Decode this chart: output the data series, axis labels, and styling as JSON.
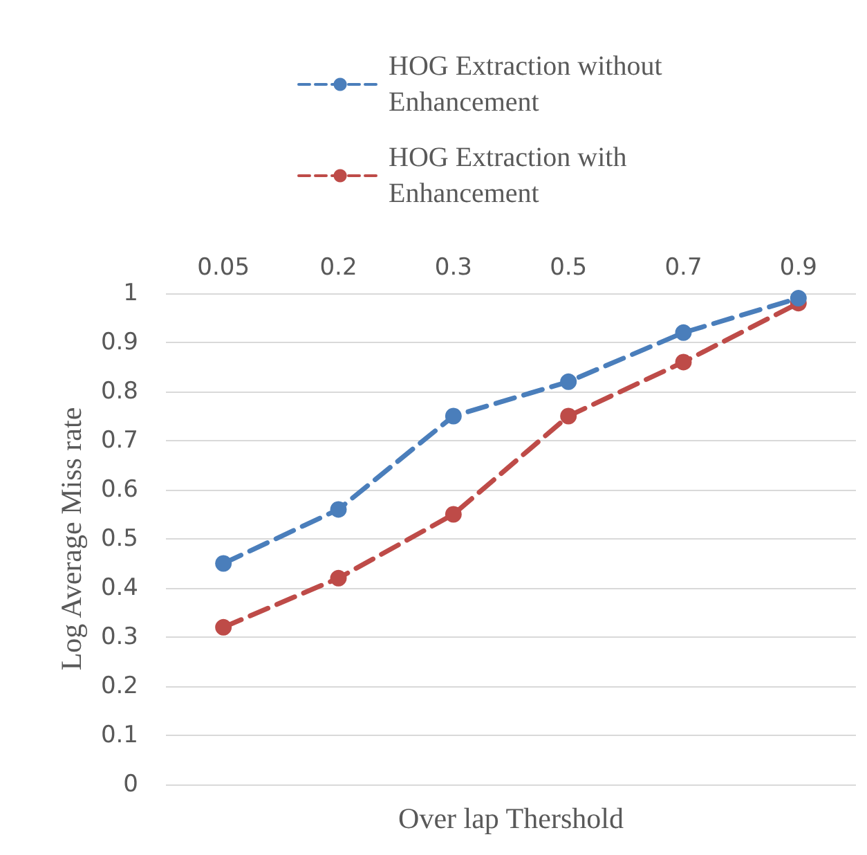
{
  "chart_data": {
    "type": "line",
    "xlabel": "Over lap Thershold",
    "ylabel": "Log Average Miss rate",
    "categories": [
      "0.05",
      "0.2",
      "0.3",
      "0.5",
      "0.7",
      "0.9"
    ],
    "series": [
      {
        "name": "HOG Extraction without Enhancement",
        "color": "#4a7ebb",
        "values": [
          0.45,
          0.56,
          0.75,
          0.82,
          0.92,
          0.99
        ]
      },
      {
        "name": "HOG Extraction with Enhancement",
        "color": "#be4b48",
        "values": [
          0.32,
          0.42,
          0.55,
          0.75,
          0.86,
          0.98
        ]
      }
    ],
    "ylim": [
      0,
      1
    ],
    "yticks": [
      0,
      0.1,
      0.2,
      0.3,
      0.4,
      0.5,
      0.6,
      0.7,
      0.8,
      0.9,
      1
    ],
    "grid": "y",
    "legend": "top",
    "marker": "circle",
    "line_style": "dashed"
  }
}
